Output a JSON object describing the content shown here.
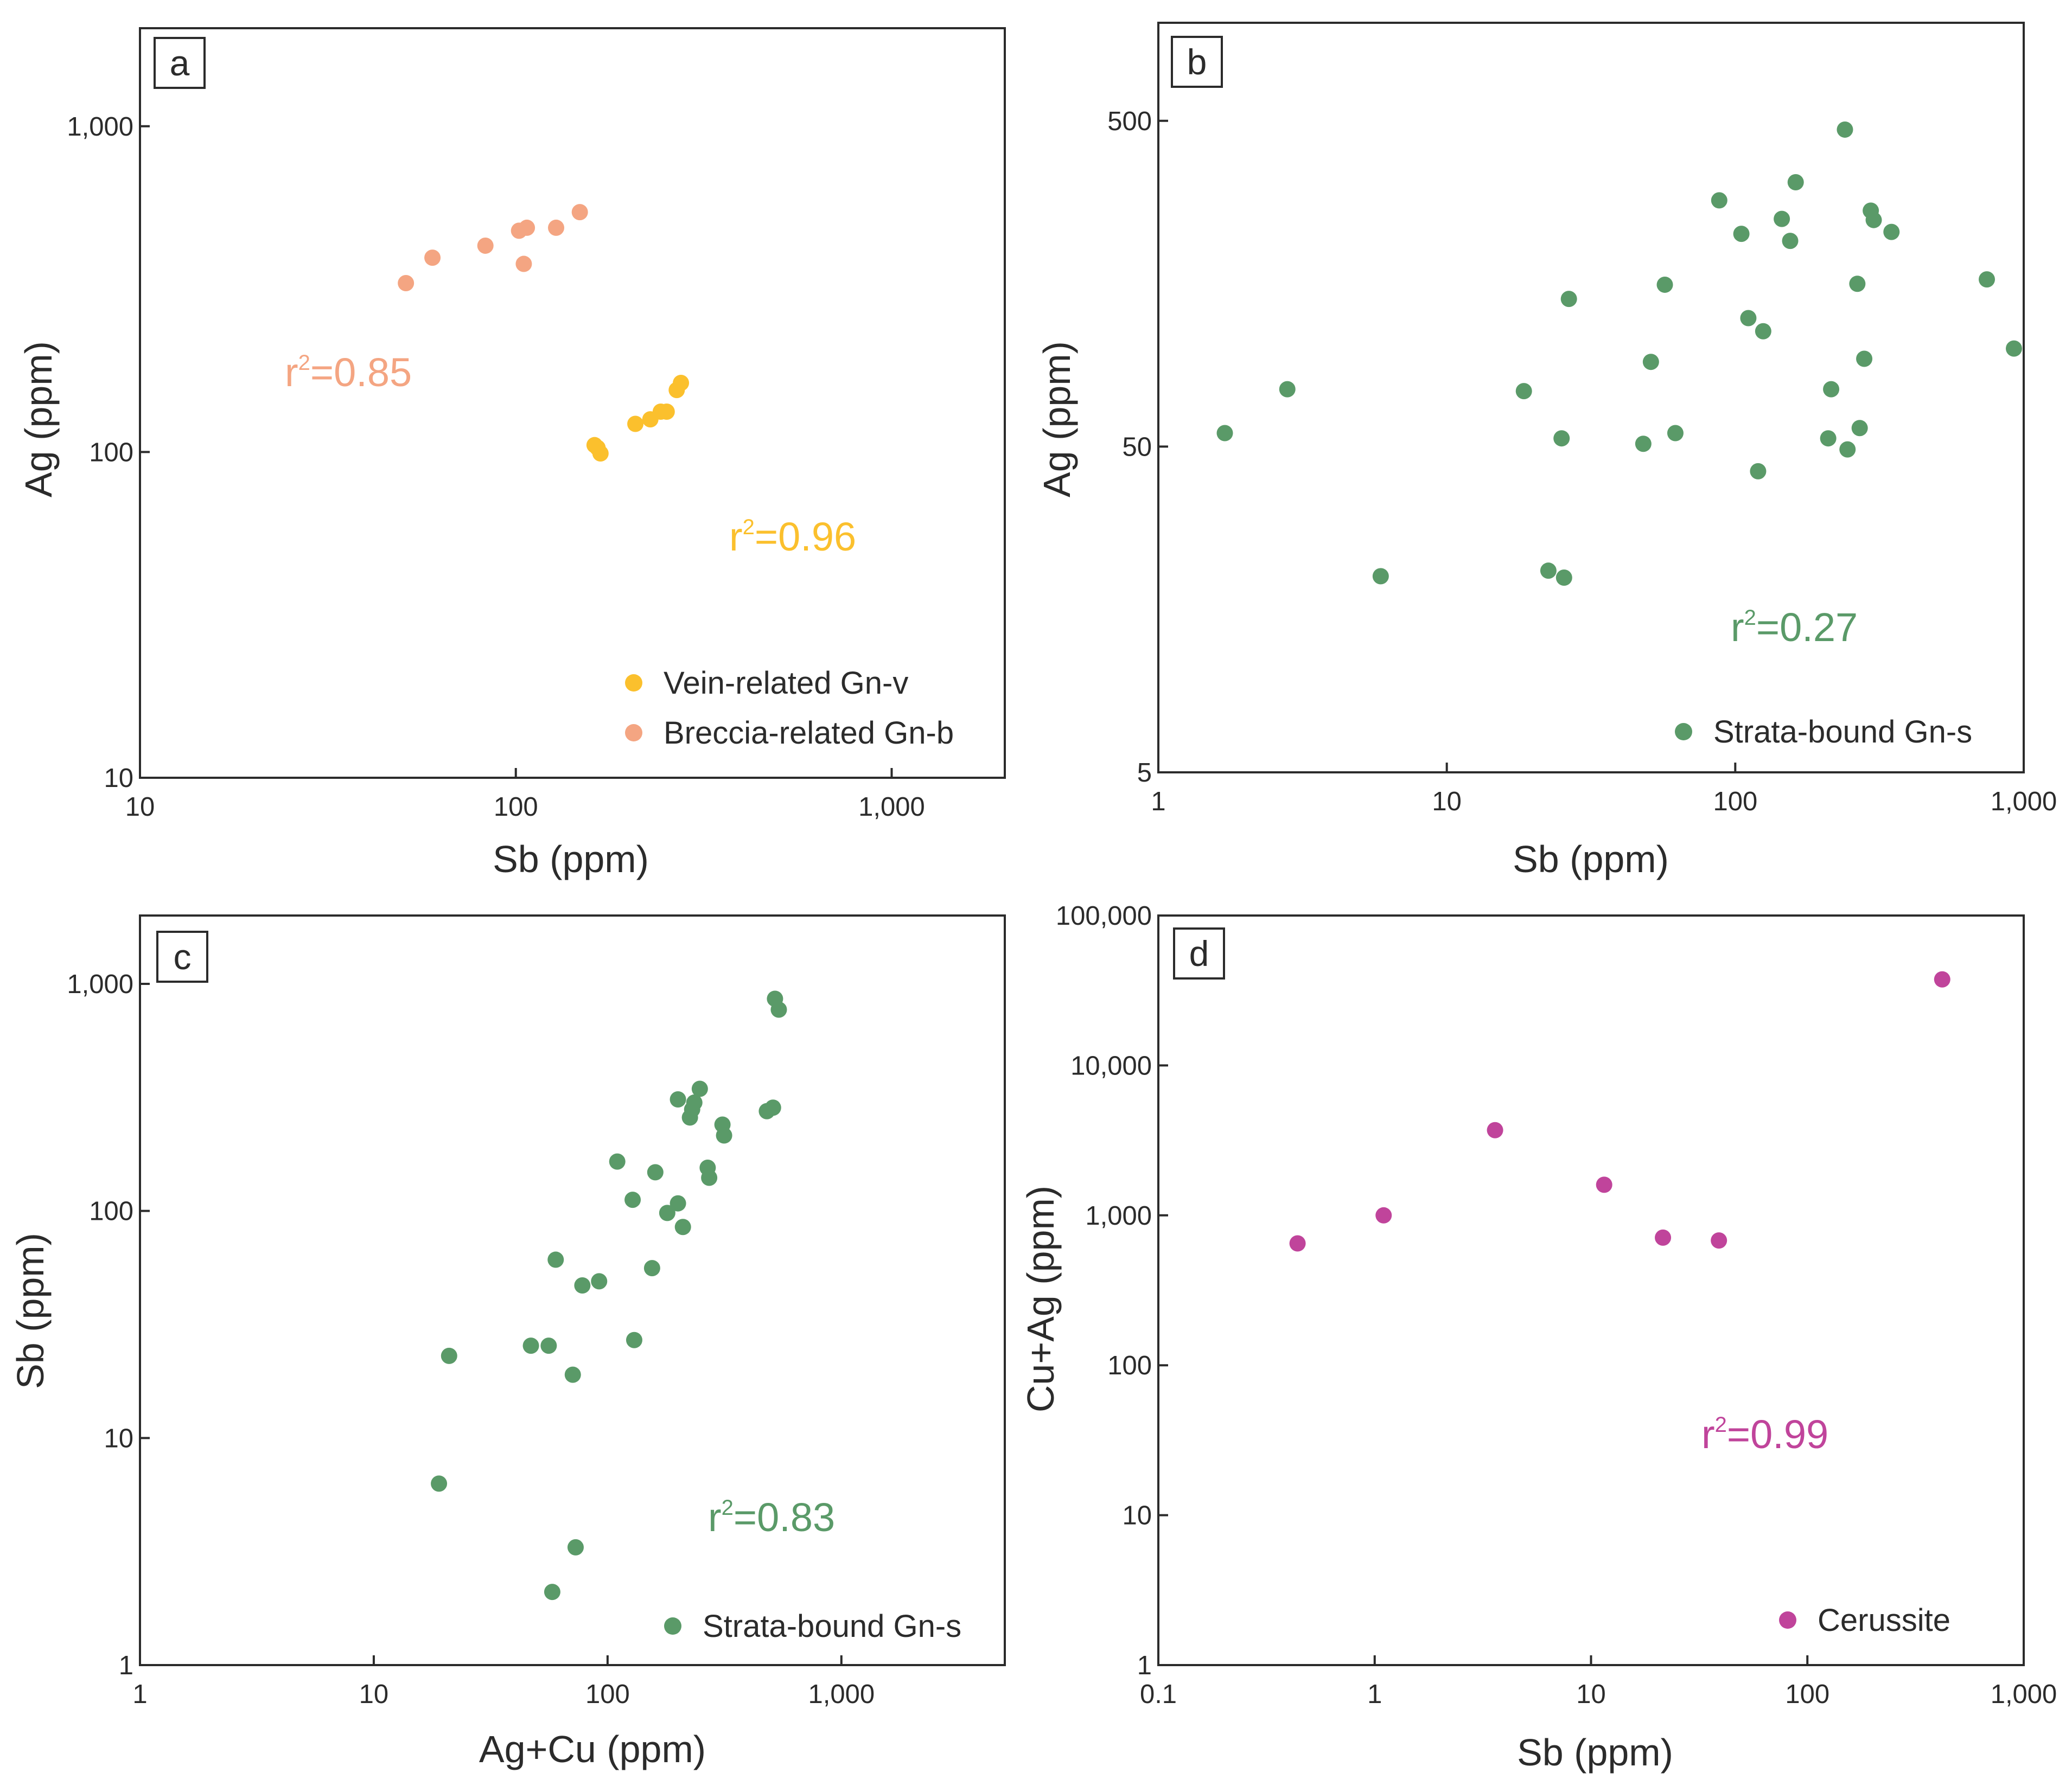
{
  "chart_data": [
    {
      "type": "scatter",
      "panel_label": "a",
      "xlabel": "Sb (ppm)",
      "ylabel": "Ag (ppm)",
      "xscale": "log",
      "yscale": "log",
      "xlim": [
        10,
        2000
      ],
      "ylim": [
        10,
        2000
      ],
      "xticks": [
        10,
        100,
        1000
      ],
      "xtick_labels": [
        "10",
        "100",
        "1,000"
      ],
      "yticks": [
        10,
        100,
        1000
      ],
      "ytick_labels": [
        "10",
        "100",
        "1,000"
      ],
      "legend_position": "bottom-right",
      "series": [
        {
          "name": "Vein-related Gn-v",
          "color": "#fbc02d",
          "x": [
            162,
            165,
            168,
            208,
            228,
            243,
            252,
            268,
            275
          ],
          "y": [
            105,
            103,
            99,
            122,
            126,
            133,
            133,
            155,
            163
          ]
        },
        {
          "name": "Breccia-related Gn-b",
          "color": "#f4a582",
          "x": [
            51,
            60,
            83,
            102,
            107,
            105,
            128,
            148
          ],
          "y": [
            330,
            395,
            430,
            478,
            488,
            378,
            488,
            545
          ]
        }
      ],
      "annotations": [
        {
          "text": "r²=0.85",
          "base": "r",
          "sup": "2",
          "rest": "=0.85",
          "color": "#f4a582"
        },
        {
          "text": "r²=0.96",
          "base": "r",
          "sup": "2",
          "rest": "=0.96",
          "color": "#fbc02d"
        }
      ]
    },
    {
      "type": "scatter",
      "panel_label": "b",
      "xlabel": "Sb (ppm)",
      "ylabel": "Ag (ppm)",
      "xscale": "log",
      "yscale": "log",
      "xlim": [
        1,
        1000
      ],
      "ylim": [
        5,
        1000
      ],
      "xticks": [
        1,
        10,
        100,
        1000
      ],
      "xtick_labels": [
        "1",
        "10",
        "100",
        "1,000"
      ],
      "yticks": [
        5,
        50,
        500
      ],
      "ytick_labels": [
        "5",
        "50",
        "500"
      ],
      "legend_position": "bottom-right",
      "series": [
        {
          "name": "Strata-bound Gn-s",
          "color": "#5a9a68",
          "x": [
            1.7,
            2.8,
            5.9,
            18.5,
            22.5,
            25.5,
            25,
            26.5,
            48,
            51,
            57,
            62,
            88,
            105,
            111,
            120,
            125,
            145,
            155,
            162,
            210,
            215,
            240,
            245,
            265,
            270,
            280,
            295,
            302,
            348,
            745,
            925
          ],
          "y": [
            55,
            75,
            20,
            74,
            20.8,
            19.8,
            53,
            142,
            51,
            91,
            157,
            55,
            285,
            225,
            124,
            42,
            113,
            250,
            214,
            324,
            53,
            75,
            470,
            49,
            158,
            57,
            93,
            265,
            248,
            228,
            163,
            100
          ]
        }
      ],
      "annotations": [
        {
          "text": "r²=0.27",
          "base": "r",
          "sup": "2",
          "rest": "=0.27",
          "color": "#5a9a68"
        }
      ]
    },
    {
      "type": "scatter",
      "panel_label": "c",
      "xlabel": "Ag+Cu (ppm)",
      "ylabel": "Sb (ppm)",
      "xscale": "log",
      "yscale": "log",
      "xlim": [
        1,
        5000
      ],
      "ylim": [
        1,
        2000
      ],
      "xticks": [
        1,
        10,
        100,
        1000
      ],
      "xtick_labels": [
        "1",
        "10",
        "100",
        "1,000"
      ],
      "yticks": [
        1,
        10,
        100,
        1000
      ],
      "ytick_labels": [
        "1",
        "10",
        "100",
        "1,000"
      ],
      "legend_position": "bottom-right",
      "series": [
        {
          "name": "Strata-bound Gn-s",
          "color": "#5a9a68",
          "x": [
            19,
            21,
            47,
            56,
            58,
            60,
            71,
            73,
            78,
            92,
            110,
            128,
            130,
            155,
            160,
            180,
            200,
            200,
            210,
            225,
            230,
            235,
            248,
            268,
            272,
            310,
            315,
            480,
            510,
            520,
            540
          ],
          "y": [
            6.3,
            23,
            25.5,
            25.5,
            2.1,
            61,
            19,
            3.3,
            47,
            49,
            165,
            112,
            27,
            56,
            148,
            98,
            108,
            310,
            85,
            258,
            280,
            300,
            345,
            155,
            140,
            240,
            215,
            275,
            285,
            860,
            770
          ]
        }
      ],
      "annotations": [
        {
          "text": "r²=0.83",
          "base": "r",
          "sup": "2",
          "rest": "=0.83",
          "color": "#5a9a68"
        }
      ]
    },
    {
      "type": "scatter",
      "panel_label": "d",
      "xlabel": "Sb (ppm)",
      "ylabel": "Cu+Ag (ppm)",
      "xscale": "log",
      "yscale": "log",
      "xlim": [
        0.1,
        1000
      ],
      "ylim": [
        1,
        100000
      ],
      "xticks": [
        0.1,
        1,
        10,
        100,
        1000
      ],
      "xtick_labels": [
        "0.1",
        "1",
        "10",
        "100",
        "1,000"
      ],
      "yticks": [
        1,
        10,
        100,
        1000,
        10000,
        100000
      ],
      "ytick_labels": [
        "1",
        "10",
        "100",
        "1,000",
        "10,000",
        "100,000"
      ],
      "legend_position": "bottom-right",
      "series": [
        {
          "name": "Cerussite",
          "color": "#c0449b",
          "x": [
            0.44,
            1.1,
            3.6,
            11.5,
            21.5,
            39,
            420
          ],
          "y": [
            650,
            1000,
            3700,
            1600,
            710,
            680,
            37500
          ]
        }
      ],
      "annotations": [
        {
          "text": "r²=0.99",
          "base": "r",
          "sup": "2",
          "rest": "=0.99",
          "color": "#c0449b"
        }
      ]
    }
  ]
}
